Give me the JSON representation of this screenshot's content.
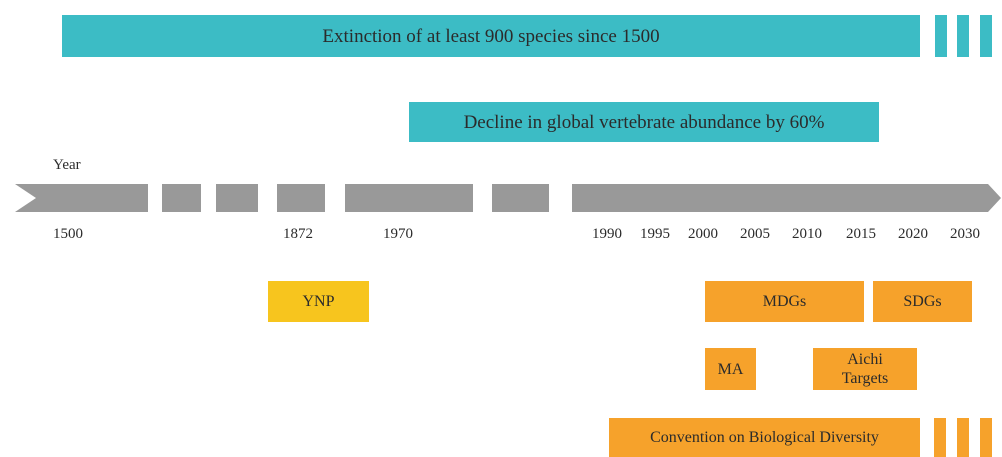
{
  "bars": {
    "extinction": "Extinction of at least 900 species since 1500",
    "decline": "Decline in global vertebrate abundance by 60%"
  },
  "axis": {
    "label": "Year",
    "years": [
      "1500",
      "1872",
      "1970",
      "1990",
      "1995",
      "2000",
      "2005",
      "2010",
      "2015",
      "2020",
      "2030"
    ]
  },
  "boxes": {
    "ynp": "YNP",
    "mdgs": "MDGs",
    "sdgs": "SDGs",
    "ma": "MA",
    "aichi": "Aichi Targets",
    "cbd": "Convention on Biological Diversity"
  }
}
